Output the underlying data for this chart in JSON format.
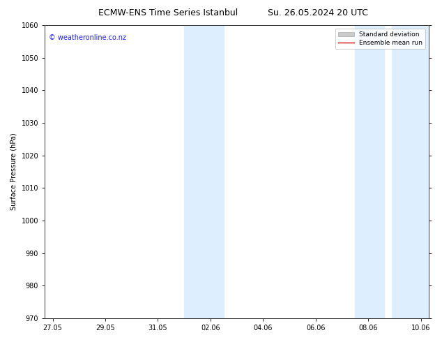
{
  "title_left": "ECMW-ENS Time Series Istanbul",
  "title_right": "Su. 26.05.2024 20 UTC",
  "ylabel": "Surface Pressure (hPa)",
  "ylim": [
    970,
    1060
  ],
  "yticks": [
    970,
    980,
    990,
    1000,
    1010,
    1020,
    1030,
    1040,
    1050,
    1060
  ],
  "xtick_labels": [
    "27.05",
    "29.05",
    "31.05",
    "02.06",
    "04.06",
    "06.06",
    "08.06",
    "10.06"
  ],
  "xtick_positions": [
    0,
    2,
    4,
    6,
    8,
    10,
    12,
    14
  ],
  "x_min": -0.3,
  "x_max": 14.3,
  "shaded_bands": [
    {
      "x_start": 5.0,
      "x_end": 6.5
    },
    {
      "x_start": 11.5,
      "x_end": 12.6
    },
    {
      "x_start": 12.9,
      "x_end": 14.3
    }
  ],
  "shade_color": "#ddeeff",
  "shade_alpha": 1.0,
  "background_color": "#ffffff",
  "watermark_text": "© weatheronline.co.nz",
  "watermark_color": "#1a1aff",
  "legend_std_color": "#cccccc",
  "legend_mean_color": "#dd0000",
  "axis_label_fontsize": 7,
  "title_fontsize": 9,
  "tick_fontsize": 7,
  "watermark_fontsize": 7,
  "legend_fontsize": 6.5
}
